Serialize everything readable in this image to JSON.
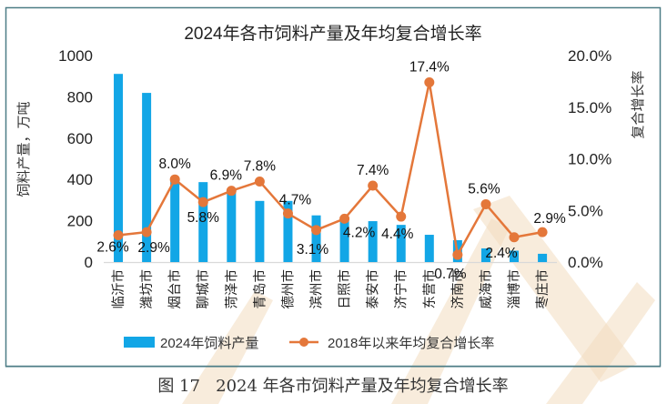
{
  "caption": "图 17   2024 年各市饲料产量及年均复合增长率",
  "colors": {
    "bar": "#12a6e6",
    "line": "#e4773a",
    "frame": "#4d7d86",
    "axis": "#d9d9d9",
    "text": "#222222",
    "watermark": "#f3dcc0"
  },
  "chart_data": {
    "type": "bar+line",
    "title": "2024年各市饲料产量及年均复合增长率",
    "xlabel": "",
    "ylabel": "饲料产量，万吨",
    "y2label": "复合增长率",
    "ylim": [
      0,
      1000
    ],
    "y2lim": [
      0,
      20
    ],
    "yticks": [
      "0",
      "200",
      "400",
      "600",
      "800",
      "1000"
    ],
    "y2ticks": [
      "0.0%",
      "5.0%",
      "10.0%",
      "15.0%",
      "20.0%"
    ],
    "grid": false,
    "legend_position": "bottom",
    "categories": [
      "临沂市",
      "潍坊市",
      "烟台市",
      "聊城市",
      "菏泽市",
      "青岛市",
      "德州市",
      "滨州市",
      "日照市",
      "泰安市",
      "济宁市",
      "东营市",
      "济南市",
      "威海市",
      "淄博市",
      "枣庄市"
    ],
    "series": [
      {
        "name": "2024年饲料产量",
        "type": "bar",
        "axis": "left",
        "values": [
          911,
          819,
          400,
          387,
          350,
          296,
          296,
          226,
          220,
          198,
          180,
          132,
          106,
          66,
          55,
          40
        ]
      },
      {
        "name": "2018年以来年均复合增长率",
        "type": "line",
        "axis": "right",
        "unit": "%",
        "values": [
          2.6,
          2.9,
          8.0,
          5.8,
          6.9,
          7.8,
          4.7,
          3.1,
          4.2,
          7.4,
          4.4,
          17.4,
          0.7,
          5.6,
          2.4,
          2.9
        ],
        "labels": [
          "2.6%",
          "2.9%",
          "8.0%",
          "5.8%",
          "6.9%",
          "7.8%",
          "4.7%",
          "3.1%",
          "4.2%",
          "7.4%",
          "4.4%",
          "17.4%",
          "0.7%",
          "5.6%",
          "2.4%",
          "2.9%"
        ]
      }
    ]
  }
}
